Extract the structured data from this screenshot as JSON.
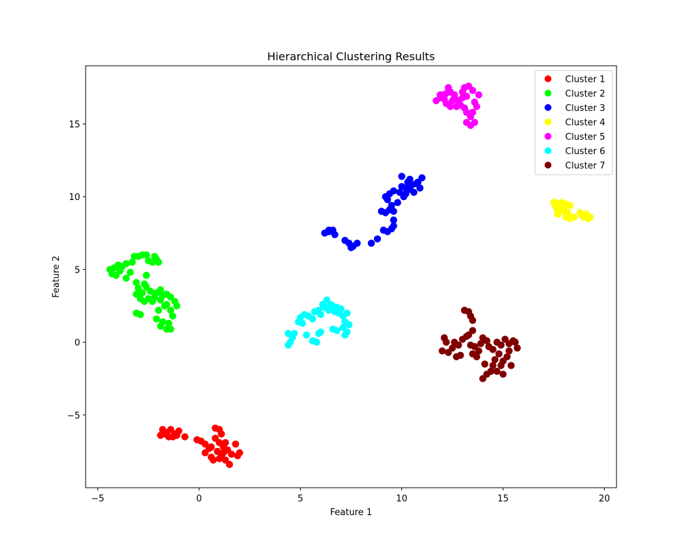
{
  "chart_data": {
    "type": "scatter",
    "title": "Hierarchical Clustering Results",
    "xlabel": "Feature 1",
    "ylabel": "Feature 2",
    "xlim": [
      -5.6,
      20.6
    ],
    "ylim": [
      -10.0,
      19.0
    ],
    "xticks": [
      -5,
      0,
      5,
      10,
      15,
      20
    ],
    "xtick_labels": [
      "−5",
      "0",
      "5",
      "10",
      "15",
      "20"
    ],
    "yticks": [
      -5,
      0,
      5,
      10,
      15
    ],
    "ytick_labels": [
      "−5",
      "0",
      "5",
      "10",
      "15"
    ],
    "grid": false,
    "legend_position": "top-right",
    "series": [
      {
        "name": "Cluster 1",
        "color": "#ff0000",
        "points": [
          [
            -1.8,
            -6.0
          ],
          [
            -1.6,
            -6.2
          ],
          [
            -1.4,
            -6.0
          ],
          [
            -1.2,
            -6.3
          ],
          [
            -1.0,
            -6.1
          ],
          [
            -0.7,
            -6.5
          ],
          [
            -1.9,
            -6.4
          ],
          [
            -1.5,
            -6.5
          ],
          [
            -1.1,
            -6.4
          ],
          [
            -1.7,
            -6.3
          ],
          [
            -1.3,
            -6.5
          ],
          [
            -0.1,
            -6.7
          ],
          [
            0.1,
            -6.8
          ],
          [
            0.3,
            -7.0
          ],
          [
            0.5,
            -7.3
          ],
          [
            0.3,
            -7.6
          ],
          [
            0.6,
            -7.9
          ],
          [
            0.8,
            -5.9
          ],
          [
            1.0,
            -6.0
          ],
          [
            1.1,
            -6.3
          ],
          [
            0.8,
            -6.6
          ],
          [
            1.0,
            -6.9
          ],
          [
            1.2,
            -7.2
          ],
          [
            0.9,
            -7.5
          ],
          [
            1.1,
            -7.8
          ],
          [
            1.3,
            -8.1
          ],
          [
            1.5,
            -8.4
          ],
          [
            0.7,
            -8.1
          ],
          [
            1.0,
            -8.0
          ],
          [
            1.4,
            -7.4
          ],
          [
            1.6,
            -7.7
          ],
          [
            1.3,
            -6.9
          ],
          [
            1.8,
            -7.0
          ],
          [
            2.0,
            -7.6
          ],
          [
            1.9,
            -7.8
          ],
          [
            0.6,
            -7.2
          ],
          [
            1.2,
            -7.6
          ]
        ]
      },
      {
        "name": "Cluster 2",
        "color": "#00ff00",
        "points": [
          [
            -4.4,
            5.0
          ],
          [
            -4.3,
            4.7
          ],
          [
            -4.1,
            4.6
          ],
          [
            -4.2,
            5.1
          ],
          [
            -4.0,
            5.3
          ],
          [
            -3.8,
            5.2
          ],
          [
            -3.6,
            5.4
          ],
          [
            -3.9,
            4.9
          ],
          [
            -3.6,
            4.4
          ],
          [
            -3.4,
            4.8
          ],
          [
            -3.3,
            5.5
          ],
          [
            -3.2,
            5.9
          ],
          [
            -3.0,
            5.9
          ],
          [
            -2.8,
            6.0
          ],
          [
            -2.6,
            6.0
          ],
          [
            -2.5,
            5.6
          ],
          [
            -2.3,
            5.5
          ],
          [
            -2.2,
            5.9
          ],
          [
            -2.1,
            5.7
          ],
          [
            -2.0,
            5.5
          ],
          [
            -3.1,
            4.1
          ],
          [
            -2.6,
            4.6
          ],
          [
            -2.7,
            4.0
          ],
          [
            -3.0,
            3.7
          ],
          [
            -3.1,
            3.3
          ],
          [
            -2.9,
            3.0
          ],
          [
            -2.7,
            2.8
          ],
          [
            -2.5,
            3.0
          ],
          [
            -2.3,
            2.8
          ],
          [
            -2.1,
            3.4
          ],
          [
            -1.9,
            3.6
          ],
          [
            -1.8,
            3.2
          ],
          [
            -1.6,
            3.3
          ],
          [
            -1.4,
            3.1
          ],
          [
            -1.2,
            2.8
          ],
          [
            -1.1,
            2.5
          ],
          [
            -1.4,
            2.2
          ],
          [
            -1.6,
            2.6
          ],
          [
            -1.9,
            2.9
          ],
          [
            -2.2,
            3.1
          ],
          [
            -2.4,
            3.5
          ],
          [
            -2.6,
            3.8
          ],
          [
            -3.1,
            2.0
          ],
          [
            -2.9,
            1.9
          ],
          [
            -2.1,
            1.6
          ],
          [
            -1.8,
            1.4
          ],
          [
            -1.9,
            1.1
          ],
          [
            -1.6,
            0.9
          ],
          [
            -1.4,
            0.9
          ],
          [
            -1.5,
            1.3
          ],
          [
            -1.3,
            1.8
          ],
          [
            -2.0,
            2.2
          ],
          [
            -1.7,
            2.5
          ],
          [
            -2.8,
            3.4
          ]
        ]
      },
      {
        "name": "Cluster 3",
        "color": "#0000ff",
        "points": [
          [
            6.2,
            7.5
          ],
          [
            6.4,
            7.6
          ],
          [
            6.6,
            7.7
          ],
          [
            6.7,
            7.4
          ],
          [
            6.4,
            7.7
          ],
          [
            7.2,
            7.0
          ],
          [
            7.4,
            6.8
          ],
          [
            7.5,
            6.5
          ],
          [
            7.6,
            6.6
          ],
          [
            7.8,
            6.8
          ],
          [
            8.5,
            6.8
          ],
          [
            8.8,
            7.1
          ],
          [
            9.1,
            7.7
          ],
          [
            9.3,
            7.6
          ],
          [
            9.5,
            7.8
          ],
          [
            9.6,
            8.0
          ],
          [
            9.6,
            8.4
          ],
          [
            9.2,
            8.9
          ],
          [
            9.4,
            9.1
          ],
          [
            9.6,
            9.0
          ],
          [
            9.8,
            9.6
          ],
          [
            9.5,
            9.4
          ],
          [
            9.3,
            9.8
          ],
          [
            9.4,
            10.2
          ],
          [
            9.6,
            10.4
          ],
          [
            10.0,
            10.7
          ],
          [
            9.9,
            10.3
          ],
          [
            10.1,
            10.0
          ],
          [
            10.2,
            10.6
          ],
          [
            10.3,
            11.0
          ],
          [
            10.0,
            11.4
          ],
          [
            10.4,
            11.2
          ],
          [
            10.5,
            10.8
          ],
          [
            10.6,
            10.3
          ],
          [
            10.7,
            10.9
          ],
          [
            10.8,
            11.0
          ],
          [
            11.0,
            11.3
          ],
          [
            10.9,
            10.6
          ],
          [
            9.0,
            9.0
          ],
          [
            9.2,
            10.0
          ],
          [
            10.2,
            10.2
          ],
          [
            10.4,
            10.5
          ]
        ]
      },
      {
        "name": "Cluster 4",
        "color": "#ffff00",
        "points": [
          [
            17.5,
            9.6
          ],
          [
            17.6,
            9.3
          ],
          [
            17.7,
            9.0
          ],
          [
            17.8,
            9.4
          ],
          [
            17.9,
            9.6
          ],
          [
            18.0,
            9.2
          ],
          [
            18.1,
            9.5
          ],
          [
            18.2,
            8.9
          ],
          [
            18.3,
            9.4
          ],
          [
            18.1,
            8.6
          ],
          [
            18.3,
            8.5
          ],
          [
            18.5,
            8.6
          ],
          [
            18.8,
            8.9
          ],
          [
            18.9,
            8.7
          ],
          [
            19.0,
            8.6
          ],
          [
            19.1,
            8.8
          ],
          [
            19.2,
            8.5
          ],
          [
            19.3,
            8.6
          ],
          [
            17.7,
            8.8
          ],
          [
            18.0,
            9.0
          ],
          [
            17.6,
            9.6
          ]
        ]
      },
      {
        "name": "Cluster 5",
        "color": "#ff00ff",
        "points": [
          [
            11.7,
            16.6
          ],
          [
            11.9,
            16.8
          ],
          [
            12.0,
            17.0
          ],
          [
            12.1,
            16.7
          ],
          [
            12.2,
            16.4
          ],
          [
            12.4,
            16.2
          ],
          [
            12.5,
            16.6
          ],
          [
            12.6,
            16.9
          ],
          [
            12.4,
            17.2
          ],
          [
            12.3,
            17.5
          ],
          [
            12.6,
            17.0
          ],
          [
            12.8,
            16.6
          ],
          [
            13.0,
            16.8
          ],
          [
            12.9,
            16.3
          ],
          [
            13.1,
            16.1
          ],
          [
            13.2,
            15.8
          ],
          [
            13.4,
            15.5
          ],
          [
            13.2,
            15.1
          ],
          [
            13.4,
            14.9
          ],
          [
            13.6,
            15.1
          ],
          [
            13.5,
            15.8
          ],
          [
            13.7,
            16.2
          ],
          [
            13.6,
            16.5
          ],
          [
            13.8,
            17.0
          ],
          [
            13.5,
            17.3
          ],
          [
            13.3,
            17.6
          ],
          [
            13.1,
            17.5
          ],
          [
            13.0,
            17.2
          ],
          [
            13.2,
            16.9
          ],
          [
            11.9,
            17.0
          ],
          [
            12.2,
            17.1
          ],
          [
            12.7,
            16.2
          ]
        ]
      },
      {
        "name": "Cluster 6",
        "color": "#00ffff",
        "points": [
          [
            4.4,
            0.6
          ],
          [
            4.4,
            -0.2
          ],
          [
            4.6,
            0.3
          ],
          [
            4.7,
            0.6
          ],
          [
            4.5,
            0.0
          ],
          [
            4.9,
            1.4
          ],
          [
            5.0,
            1.7
          ],
          [
            5.2,
            1.9
          ],
          [
            5.1,
            1.3
          ],
          [
            5.3,
            0.5
          ],
          [
            5.6,
            0.1
          ],
          [
            5.8,
            0.0
          ],
          [
            5.9,
            0.6
          ],
          [
            6.0,
            0.7
          ],
          [
            5.6,
            1.6
          ],
          [
            5.7,
            2.1
          ],
          [
            5.9,
            2.2
          ],
          [
            6.1,
            2.6
          ],
          [
            6.2,
            2.4
          ],
          [
            6.3,
            2.9
          ],
          [
            6.4,
            2.2
          ],
          [
            6.5,
            2.6
          ],
          [
            6.6,
            2.5
          ],
          [
            6.7,
            2.1
          ],
          [
            6.8,
            2.4
          ],
          [
            6.9,
            2.0
          ],
          [
            7.0,
            2.3
          ],
          [
            7.1,
            1.8
          ],
          [
            7.2,
            1.4
          ],
          [
            7.3,
            2.0
          ],
          [
            7.4,
            1.2
          ],
          [
            7.3,
            0.7
          ],
          [
            7.1,
            1.0
          ],
          [
            6.8,
            0.8
          ],
          [
            6.6,
            0.9
          ],
          [
            7.2,
            0.5
          ],
          [
            6.0,
            1.9
          ],
          [
            5.4,
            1.8
          ]
        ]
      },
      {
        "name": "Cluster 7",
        "color": "#800000",
        "points": [
          [
            13.1,
            2.2
          ],
          [
            13.3,
            2.1
          ],
          [
            13.4,
            1.8
          ],
          [
            13.5,
            1.5
          ],
          [
            13.5,
            0.8
          ],
          [
            13.3,
            0.5
          ],
          [
            12.1,
            0.3
          ],
          [
            12.2,
            0.0
          ],
          [
            12.0,
            -0.6
          ],
          [
            12.3,
            -0.7
          ],
          [
            12.5,
            -0.4
          ],
          [
            12.7,
            -1.0
          ],
          [
            12.9,
            -0.9
          ],
          [
            12.8,
            -0.2
          ],
          [
            13.0,
            0.2
          ],
          [
            13.2,
            0.4
          ],
          [
            13.4,
            -0.2
          ],
          [
            13.6,
            -0.3
          ],
          [
            13.8,
            -0.6
          ],
          [
            13.9,
            -0.1
          ],
          [
            14.0,
            0.3
          ],
          [
            14.2,
            0.1
          ],
          [
            14.3,
            -0.3
          ],
          [
            14.5,
            -0.5
          ],
          [
            14.7,
            0.0
          ],
          [
            14.9,
            -0.2
          ],
          [
            15.1,
            0.2
          ],
          [
            15.3,
            -0.1
          ],
          [
            15.5,
            0.1
          ],
          [
            15.7,
            -0.4
          ],
          [
            15.6,
            0.0
          ],
          [
            15.3,
            -0.6
          ],
          [
            15.2,
            -1.0
          ],
          [
            15.0,
            -1.3
          ],
          [
            14.9,
            -1.6
          ],
          [
            14.6,
            -1.2
          ],
          [
            14.5,
            -1.6
          ],
          [
            14.4,
            -2.0
          ],
          [
            14.2,
            -2.2
          ],
          [
            14.0,
            -2.5
          ],
          [
            14.1,
            -1.5
          ],
          [
            14.7,
            -2.0
          ],
          [
            15.0,
            -2.2
          ],
          [
            15.4,
            -1.6
          ],
          [
            13.7,
            -1.0
          ],
          [
            13.5,
            -0.8
          ],
          [
            12.6,
            0.0
          ],
          [
            14.8,
            -0.8
          ]
        ]
      }
    ]
  }
}
